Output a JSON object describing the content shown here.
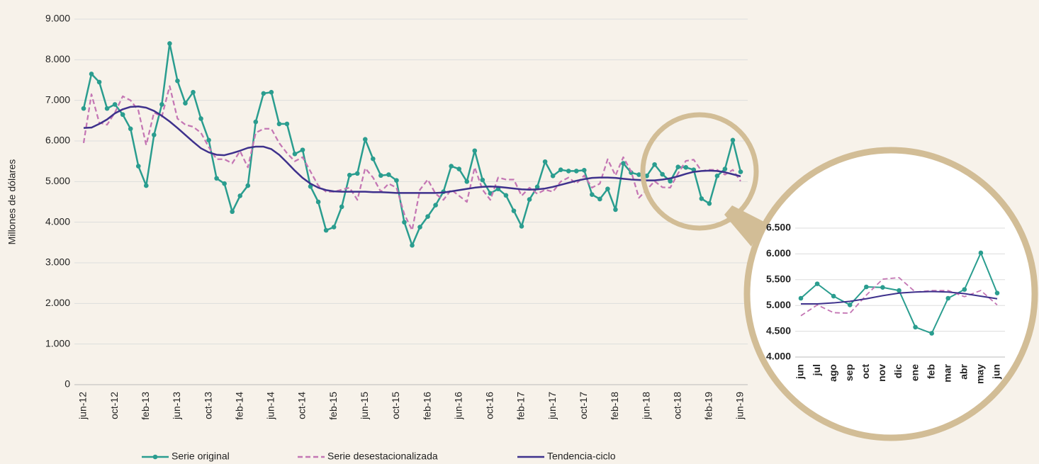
{
  "chart_data": [
    {
      "type": "line",
      "y_label": "Millones de dólares",
      "categories": [
        "jun-12",
        null,
        null,
        null,
        "oct-12",
        null,
        null,
        null,
        "feb-13",
        null,
        null,
        null,
        "jun-13",
        null,
        null,
        null,
        "oct-13",
        null,
        null,
        null,
        "feb-14",
        null,
        null,
        null,
        "jun-14",
        null,
        null,
        null,
        "oct-14",
        null,
        null,
        null,
        "feb-15",
        null,
        null,
        null,
        "jun-15",
        null,
        null,
        null,
        "oct-15",
        null,
        null,
        null,
        "feb-16",
        null,
        null,
        null,
        "jun-16",
        null,
        null,
        null,
        "oct-16",
        null,
        null,
        null,
        "feb-17",
        null,
        null,
        null,
        "jun-17",
        null,
        null,
        null,
        "oct-17",
        null,
        null,
        null,
        "feb-18",
        null,
        null,
        null,
        "jun-18",
        null,
        null,
        null,
        "oct-18",
        null,
        null,
        null,
        "feb-19",
        null,
        null,
        null,
        "jun-19"
      ],
      "ylim": [
        0,
        9000
      ],
      "yticks": [
        0,
        {
          "value": 1000,
          "label": "1.000"
        },
        {
          "value": 2000,
          "label": "2.000"
        },
        {
          "value": 3000,
          "label": "3.000"
        },
        {
          "value": 4000,
          "label": "4.000"
        },
        {
          "value": 5000,
          "label": "5.000"
        },
        {
          "value": 6000,
          "label": "6.000"
        },
        {
          "value": 7000,
          "label": "7.000"
        },
        {
          "value": 8000,
          "label": "8.000"
        },
        {
          "value": 9000,
          "label": "9.000"
        }
      ],
      "grid": true,
      "legend": "bottom",
      "series": [
        {
          "name": "Serie original",
          "color": "#2a9d8f",
          "marker": true,
          "style": "solid",
          "values": [
            6800,
            7650,
            7450,
            6800,
            6900,
            6650,
            6300,
            5380,
            4900,
            6150,
            6900,
            8400,
            7480,
            6930,
            7200,
            6550,
            6020,
            5080,
            4950,
            4260,
            4650,
            4900,
            6470,
            7170,
            7200,
            6420,
            6420,
            5680,
            5780,
            4880,
            4500,
            3800,
            3880,
            4380,
            5160,
            5200,
            6040,
            5560,
            5150,
            5170,
            5030,
            4000,
            3430,
            3880,
            4140,
            4420,
            4750,
            5380,
            5310,
            5000,
            5760,
            5040,
            4710,
            4820,
            4660,
            4280,
            3900,
            4560,
            4870,
            5490,
            5140,
            5290,
            5260,
            5260,
            5280,
            4680,
            4570,
            4820,
            4310,
            5450,
            5220,
            5170,
            5140,
            5420,
            5180,
            5010,
            5360,
            5350,
            5290,
            4580,
            4460,
            5140,
            5310,
            6020,
            5240
          ]
        },
        {
          "name": "Serie desestacionalizada",
          "color": "#c476b4",
          "marker": false,
          "style": "dashed",
          "values": [
            5950,
            7150,
            6450,
            6400,
            6700,
            7100,
            7000,
            6750,
            5900,
            6700,
            6600,
            7350,
            6550,
            6400,
            6350,
            6200,
            5850,
            5550,
            5550,
            5450,
            5750,
            5350,
            6200,
            6300,
            6300,
            5950,
            5700,
            5500,
            5600,
            5250,
            4900,
            4750,
            4750,
            4800,
            4850,
            4550,
            5330,
            5100,
            4750,
            4950,
            4850,
            4200,
            3800,
            4800,
            5050,
            4700,
            4550,
            4800,
            4650,
            4500,
            5350,
            4800,
            4550,
            5100,
            5050,
            5050,
            4650,
            4850,
            4700,
            4800,
            4750,
            5000,
            5100,
            4950,
            5150,
            4850,
            4950,
            5550,
            5150,
            5600,
            5250,
            4600,
            4800,
            5010,
            4860,
            4850,
            5200,
            5510,
            5540,
            5260,
            5290,
            5290,
            5170,
            5290,
            5010
          ]
        },
        {
          "name": "Tendencia-ciclo",
          "color": "#3e318c",
          "marker": false,
          "style": "solid",
          "values": [
            6320,
            6330,
            6420,
            6530,
            6680,
            6780,
            6840,
            6850,
            6820,
            6740,
            6620,
            6480,
            6320,
            6150,
            5980,
            5820,
            5720,
            5660,
            5650,
            5700,
            5760,
            5830,
            5860,
            5860,
            5800,
            5660,
            5470,
            5270,
            5090,
            4950,
            4850,
            4790,
            4760,
            4750,
            4750,
            4750,
            4750,
            4740,
            4740,
            4730,
            4720,
            4720,
            4720,
            4720,
            4720,
            4720,
            4730,
            4760,
            4790,
            4820,
            4850,
            4870,
            4880,
            4870,
            4850,
            4830,
            4810,
            4800,
            4810,
            4830,
            4870,
            4920,
            4970,
            5020,
            5060,
            5090,
            5100,
            5100,
            5090,
            5070,
            5050,
            5040,
            5030,
            5030,
            5050,
            5080,
            5130,
            5190,
            5240,
            5260,
            5270,
            5260,
            5230,
            5180,
            5130
          ]
        }
      ]
    },
    {
      "type": "line",
      "categories": [
        "jun",
        "jul",
        "ago",
        "sep",
        "oct",
        "nov",
        "dic",
        "ene",
        "feb",
        "mar",
        "abr",
        "may",
        "jun"
      ],
      "ylim": [
        4000,
        6500
      ],
      "yticks": [
        {
          "value": 4000,
          "label": "4.000"
        },
        {
          "value": 4500,
          "label": "4.500"
        },
        {
          "value": 5000,
          "label": "5.000"
        },
        {
          "value": 5500,
          "label": "5.500"
        },
        {
          "value": 6000,
          "label": "6.000"
        },
        {
          "value": 6500,
          "label": "6.500"
        }
      ],
      "grid": true,
      "series": [
        {
          "color": "#2a9d8f",
          "marker": true,
          "style": "solid",
          "values": [
            5140,
            5420,
            5180,
            5010,
            5360,
            5350,
            5290,
            4580,
            4460,
            5140,
            5310,
            6020,
            5240
          ]
        },
        {
          "color": "#c476b4",
          "marker": false,
          "style": "dashed",
          "values": [
            4800,
            5010,
            4860,
            4850,
            5200,
            5510,
            5540,
            5260,
            5290,
            5290,
            5170,
            5290,
            5010
          ]
        },
        {
          "color": "#3e318c",
          "marker": false,
          "style": "solid",
          "values": [
            5030,
            5030,
            5050,
            5080,
            5130,
            5190,
            5240,
            5260,
            5270,
            5260,
            5230,
            5180,
            5130
          ]
        }
      ]
    }
  ]
}
